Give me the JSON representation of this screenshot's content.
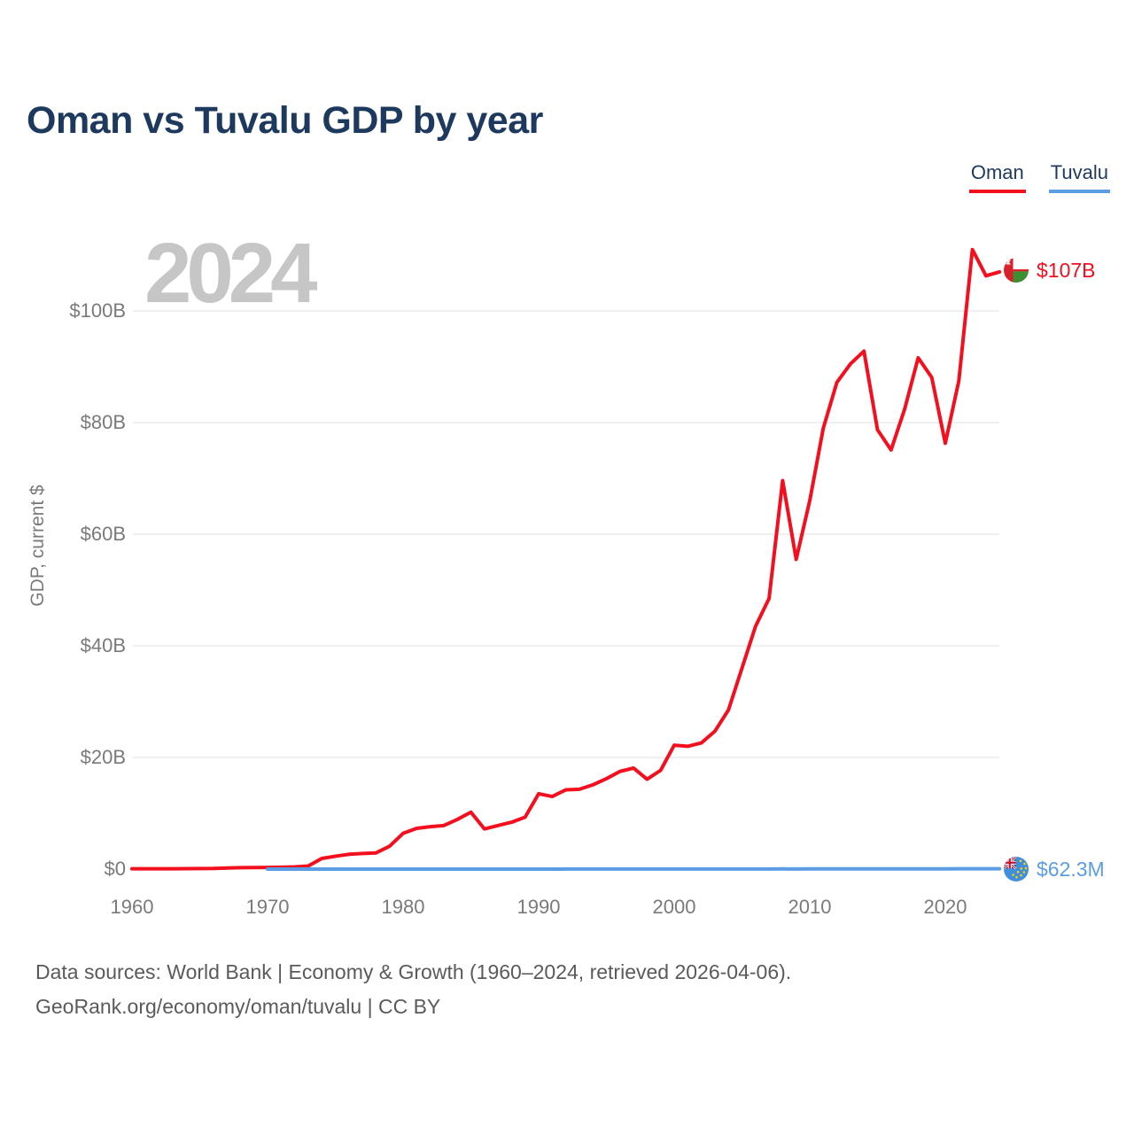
{
  "title": "Oman vs Tuvalu GDP by year",
  "watermark": "2024",
  "colors": {
    "oman_red": "#f40f1f",
    "tuvalu_blue": "#5b9de4",
    "title_navy": "#1d3a5e",
    "grid": "#ebebeb",
    "tick_gray": "#7a7a7a",
    "watermark_gray": "#c6c6c6",
    "footer_gray": "#5a5a5a"
  },
  "legend": {
    "items": [
      {
        "label": "Oman",
        "color": "#f40f1f"
      },
      {
        "label": "Tuvalu",
        "color": "#5b9de4"
      }
    ]
  },
  "y_axis": {
    "title": "GDP, current $",
    "ticks": [
      {
        "value": 0,
        "label": "$0"
      },
      {
        "value": 20,
        "label": "$20B"
      },
      {
        "value": 40,
        "label": "$40B"
      },
      {
        "value": 60,
        "label": "$60B"
      },
      {
        "value": 80,
        "label": "$80B"
      },
      {
        "value": 100,
        "label": "$100B"
      }
    ]
  },
  "x_axis": {
    "ticks": [
      {
        "value": 1960,
        "label": "1960"
      },
      {
        "value": 1970,
        "label": "1970"
      },
      {
        "value": 1980,
        "label": "1980"
      },
      {
        "value": 1990,
        "label": "1990"
      },
      {
        "value": 2000,
        "label": "2000"
      },
      {
        "value": 2010,
        "label": "2010"
      },
      {
        "value": 2020,
        "label": "2020"
      }
    ]
  },
  "end_labels": [
    {
      "series": "Oman",
      "label": "$107B",
      "flag": "oman-flag"
    },
    {
      "series": "Tuvalu",
      "label": "$62.3M",
      "flag": "tuvalu-flag"
    }
  ],
  "footer": {
    "line1": "Data sources: World Bank | Economy & Growth (1960–2024, retrieved 2026-04-06).",
    "line2": "GeoRank.org/economy/oman/tuvalu | CC BY"
  },
  "chart_data": {
    "type": "line",
    "title": "Oman vs Tuvalu GDP by year",
    "xlabel": "",
    "ylabel": "GDP, current $",
    "unit": "billions of current US$",
    "x_range": [
      1960,
      2024
    ],
    "ylim": [
      0,
      114
    ],
    "grid": true,
    "legend_position": "top-right",
    "year_marker": "2024",
    "series": [
      {
        "name": "Oman",
        "color": "#f40f1f",
        "end_label": "$107B",
        "start_year": 1960,
        "values": [
          0.05,
          0.055,
          0.06,
          0.065,
          0.075,
          0.09,
          0.11,
          0.19,
          0.26,
          0.28,
          0.3,
          0.34,
          0.39,
          0.55,
          1.9,
          2.3,
          2.65,
          2.8,
          2.9,
          4.1,
          6.4,
          7.3,
          7.6,
          7.8,
          8.9,
          10.2,
          7.2,
          7.8,
          8.4,
          9.3,
          13.5,
          13.0,
          14.2,
          14.3,
          15.1,
          16.2,
          17.5,
          18.1,
          16.1,
          17.7,
          22.2,
          22.0,
          22.6,
          24.7,
          28.5,
          36.0,
          43.5,
          48.5,
          69.6,
          55.5,
          66.0,
          79.0,
          87.2,
          90.5,
          92.8,
          78.7,
          75.1,
          82.4,
          91.6,
          88.1,
          76.3,
          87.5,
          111.0,
          106.3,
          107.0
        ]
      },
      {
        "name": "Tuvalu",
        "color": "#5b9de4",
        "end_label": "$62.3M",
        "start_year": 1970,
        "values": [
          0.001,
          0.0011,
          0.0012,
          0.0014,
          0.0016,
          0.0018,
          0.002,
          0.0022,
          0.0025,
          0.0028,
          0.003,
          0.0032,
          0.0034,
          0.0036,
          0.0038,
          0.004,
          0.0045,
          0.005,
          0.0055,
          0.006,
          0.009,
          0.0095,
          0.01,
          0.01,
          0.011,
          0.011,
          0.012,
          0.013,
          0.012,
          0.013,
          0.014,
          0.014,
          0.015,
          0.018,
          0.021,
          0.022,
          0.024,
          0.027,
          0.031,
          0.027,
          0.032,
          0.038,
          0.04,
          0.039,
          0.036,
          0.037,
          0.04,
          0.043,
          0.043,
          0.048,
          0.049,
          0.053,
          0.056,
          0.059,
          0.0623
        ]
      }
    ]
  }
}
